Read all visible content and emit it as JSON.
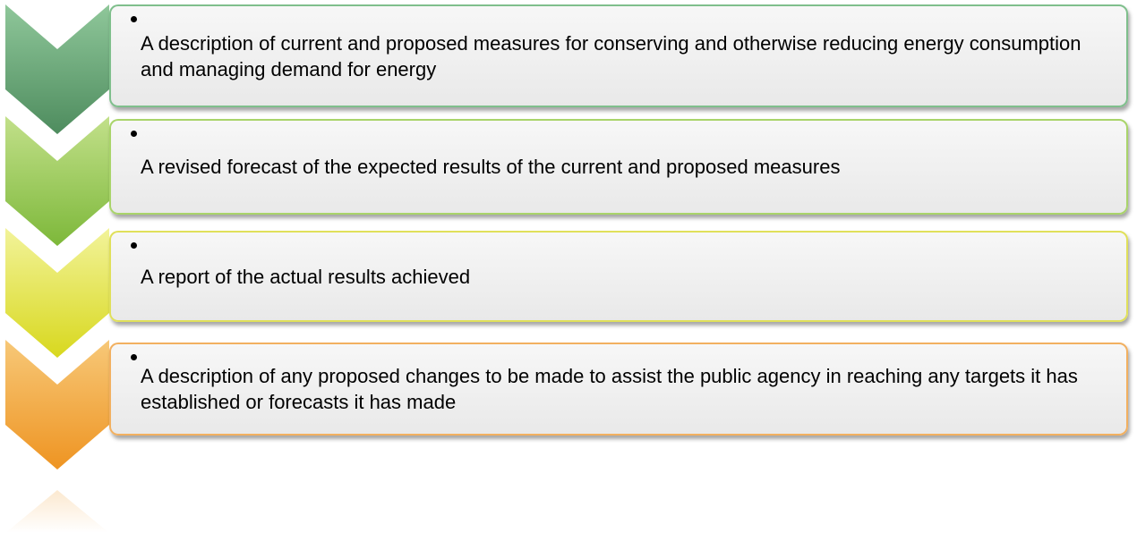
{
  "items": [
    {
      "text": "A description of current and proposed measures for conserving and otherwise reducing energy consumption and managing demand for energy"
    },
    {
      "text": "A revised forecast of the expected results of the current and proposed measures"
    },
    {
      "text": "A report of the actual results achieved"
    },
    {
      "text": "A description of any proposed changes to be made to assist the public agency in reaching any targets it has established or forecasts it has made"
    }
  ]
}
